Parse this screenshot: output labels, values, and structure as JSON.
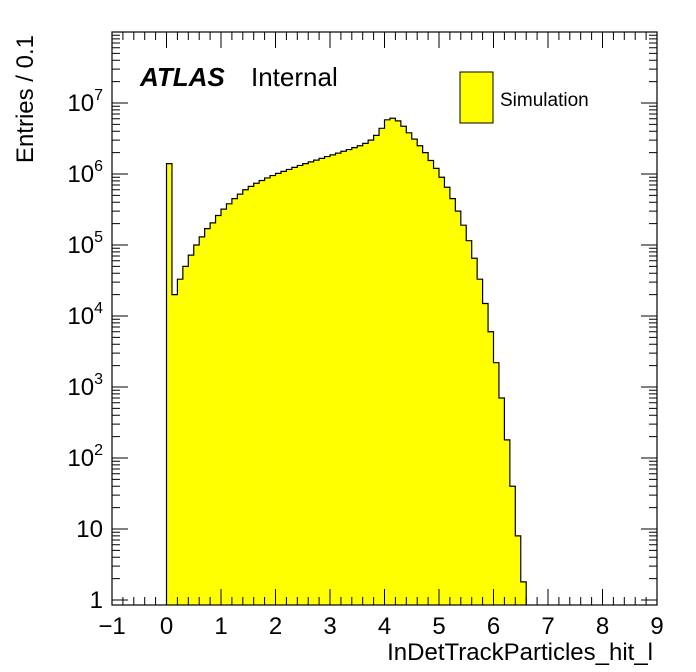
{
  "chart_data": {
    "type": "bar",
    "xlabel": "InDetTrackParticles_hit_l",
    "ylabel": "Entries / 0.1",
    "xlim": [
      -1,
      9
    ],
    "ylim": [
      0.85,
      100000000
    ],
    "y_scale": "log",
    "x_ticks": [
      "−1",
      "0",
      "1",
      "2",
      "3",
      "4",
      "5",
      "6",
      "7",
      "8",
      "9"
    ],
    "y_ticks": [
      {
        "value": 1,
        "base": "1",
        "exp": ""
      },
      {
        "value": 10,
        "base": "10",
        "exp": ""
      },
      {
        "value": 100,
        "base": "10",
        "exp": "2"
      },
      {
        "value": 1000,
        "base": "10",
        "exp": "3"
      },
      {
        "value": 10000,
        "base": "10",
        "exp": "4"
      },
      {
        "value": 100000,
        "base": "10",
        "exp": "5"
      },
      {
        "value": 1000000,
        "base": "10",
        "exp": "6"
      },
      {
        "value": 10000000,
        "base": "10",
        "exp": "7"
      }
    ],
    "annotation": {
      "experiment": "ATLAS",
      "status": "Internal"
    },
    "legend": {
      "position": "top-right",
      "entries": [
        {
          "label": "Simulation",
          "color": "#ffff00"
        }
      ]
    },
    "fill_color": "#ffff00",
    "line_color": "#000000",
    "bin_width": 0.1,
    "bin_start": 0.0,
    "values": [
      1400000,
      20000,
      33000,
      50000,
      72000,
      100000,
      130000,
      170000,
      205000,
      260000,
      320000,
      380000,
      450000,
      520000,
      600000,
      670000,
      740000,
      810000,
      880000,
      950000,
      1020000,
      1090000,
      1160000,
      1240000,
      1320000,
      1400000,
      1480000,
      1570000,
      1660000,
      1760000,
      1860000,
      1970000,
      2090000,
      2210000,
      2350000,
      2500000,
      2700000,
      3000000,
      3500000,
      4400000,
      5800000,
      6100000,
      5600000,
      4700000,
      3800000,
      3100000,
      2500000,
      2000000,
      1550000,
      1200000,
      900000,
      650000,
      450000,
      300000,
      190000,
      115000,
      65000,
      33000,
      15000,
      6000,
      2200,
      700,
      180,
      40,
      8,
      1.8
    ]
  }
}
